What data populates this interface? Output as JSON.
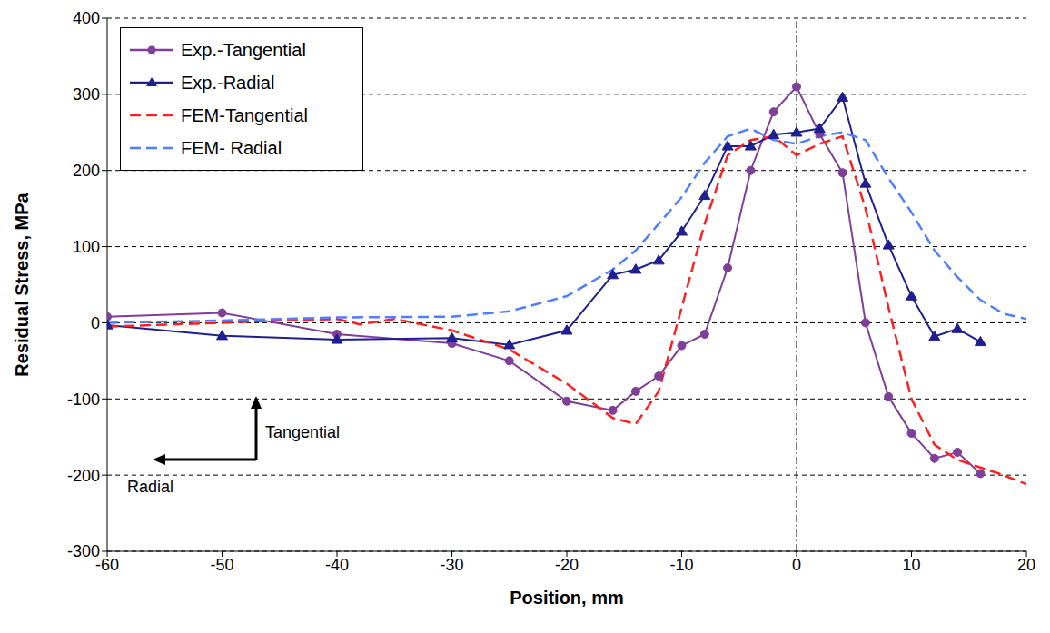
{
  "chart_data": {
    "type": "line",
    "x_label": "Position, mm",
    "y_label": "Residual Stress, MPa",
    "annotations": [
      "Tangential",
      "Radial"
    ],
    "xlim": [
      -60,
      20
    ],
    "xticks": [
      -60,
      -50,
      -40,
      -30,
      -20,
      -10,
      0,
      10,
      20
    ],
    "ylim": [
      -300,
      400
    ],
    "yticks": [
      -300,
      -200,
      -100,
      0,
      100,
      200,
      300,
      400
    ],
    "grid": true,
    "legend": "upper left",
    "series": [
      {
        "name": "Exp.-Tangential",
        "color": "#7f3f98",
        "marker": "circle",
        "line_style": "solid",
        "x": [
          -60,
          -50,
          -40,
          -30,
          -25,
          -20,
          -16,
          -14,
          -12,
          -10,
          -8,
          -6,
          -4,
          -2,
          0,
          2,
          4,
          6,
          8,
          10,
          12,
          14,
          16
        ],
        "values": [
          8,
          13,
          -15,
          -27,
          -50,
          -103,
          -115,
          -90,
          -70,
          -30,
          -15,
          72,
          200,
          277,
          310,
          248,
          197,
          0,
          -97,
          -145,
          -178,
          -170,
          -198
        ]
      },
      {
        "name": "Exp.-Radial",
        "color": "#1f1f8f",
        "marker": "triangle",
        "line_style": "solid",
        "x": [
          -60,
          -50,
          -40,
          -30,
          -25,
          -20,
          -16,
          -14,
          -12,
          -10,
          -8,
          -6,
          -4,
          -2,
          0,
          2,
          4,
          6,
          8,
          10,
          12,
          14,
          16
        ],
        "values": [
          -3,
          -17,
          -22,
          -20,
          -29,
          -10,
          63,
          70,
          82,
          120,
          167,
          232,
          232,
          247,
          250,
          255,
          296,
          183,
          102,
          35,
          -18,
          -8,
          -25
        ]
      },
      {
        "name": "FEM-Tangential",
        "color": "#ff2020",
        "marker": "none",
        "line_style": "dashed",
        "x": [
          -60,
          -50,
          -45,
          -40,
          -38,
          -35,
          -30,
          -25,
          -20,
          -16,
          -14,
          -12,
          -10,
          -8,
          -6,
          -4,
          -2,
          0,
          2,
          4,
          6,
          8,
          10,
          12,
          14,
          16,
          18,
          20
        ],
        "values": [
          -5,
          0,
          3,
          5,
          -2,
          5,
          -10,
          -35,
          -80,
          -125,
          -133,
          -90,
          20,
          130,
          220,
          240,
          245,
          220,
          235,
          245,
          150,
          20,
          -100,
          -160,
          -180,
          -190,
          -200,
          -212
        ]
      },
      {
        "name": "FEM- Radial",
        "color": "#4f7fff",
        "marker": "none",
        "line_style": "dashed",
        "x": [
          -60,
          -50,
          -40,
          -30,
          -25,
          -20,
          -16,
          -14,
          -12,
          -10,
          -8,
          -6,
          -4,
          -2,
          0,
          2,
          4,
          6,
          8,
          10,
          12,
          14,
          16,
          18,
          20
        ],
        "values": [
          0,
          3,
          7,
          8,
          15,
          35,
          70,
          95,
          130,
          165,
          210,
          245,
          255,
          240,
          235,
          245,
          250,
          240,
          190,
          145,
          95,
          60,
          30,
          12,
          5
        ]
      }
    ]
  }
}
